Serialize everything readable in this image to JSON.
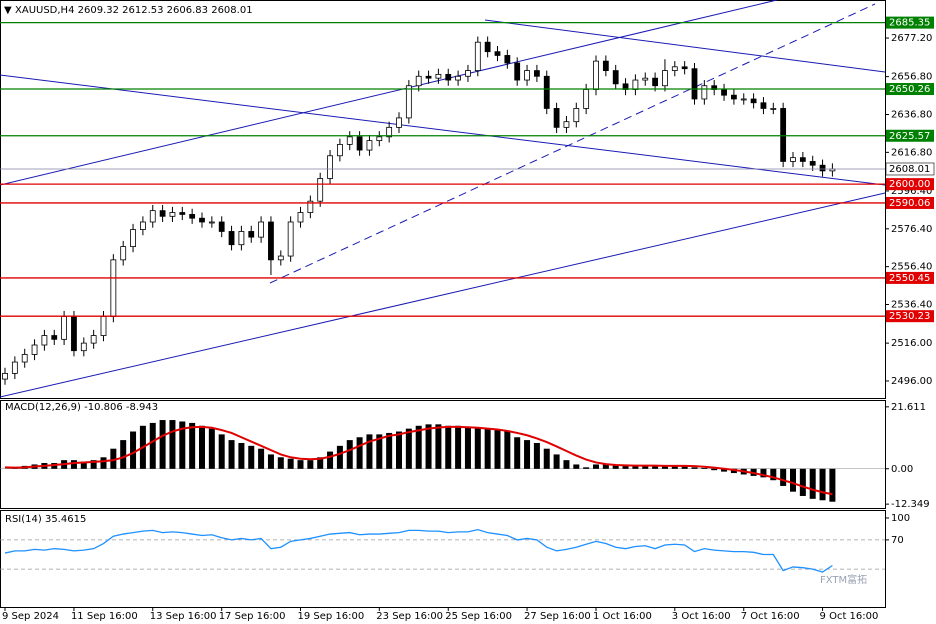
{
  "chart_data": [
    {
      "type": "candlestick",
      "title": "XAUUSD,H4 2609.32 2612.53 2606.83 2608.01",
      "categories": [
        "9 Sep 2024",
        null,
        null,
        null,
        null,
        null,
        null,
        "11 Sep 16:00",
        null,
        null,
        null,
        null,
        null,
        null,
        null,
        "13 Sep 16:00",
        null,
        null,
        null,
        null,
        null,
        null,
        "17 Sep 16:00",
        null,
        null,
        null,
        null,
        null,
        null,
        null,
        "19 Sep 16:00",
        null,
        null,
        null,
        null,
        null,
        null,
        null,
        "23 Sep 16:00",
        null,
        null,
        null,
        null,
        null,
        null,
        "25 Sep 16:00",
        null,
        null,
        null,
        null,
        null,
        null,
        null,
        "27 Sep 16:00",
        null,
        null,
        null,
        null,
        null,
        null,
        "1 Oct 16:00",
        null,
        null,
        null,
        null,
        null,
        null,
        null,
        "3 Oct 16:00",
        null,
        null,
        null,
        null,
        null,
        null,
        "7 Oct 16:00",
        null,
        null,
        null,
        null,
        null,
        null,
        null,
        "9 Oct 16:00",
        null
      ],
      "open": [
        2497,
        2500,
        2506,
        2510,
        2515,
        2520,
        2518,
        2530,
        2512,
        2516,
        2520,
        2530,
        2560,
        2567,
        2576,
        2580,
        2586,
        2583,
        2585,
        2584,
        2582,
        2580,
        2580,
        2575,
        2568,
        2575,
        2572,
        2580,
        2560,
        2562,
        2580,
        2585,
        2591,
        2603,
        2615,
        2621,
        2625,
        2618,
        2623,
        2625,
        2630,
        2635,
        2652,
        2657,
        2656,
        2658,
        2655,
        2657,
        2660,
        2675,
        2670,
        2668,
        2664,
        2655,
        2660,
        2657,
        2640,
        2630,
        2633,
        2640,
        2650,
        2665,
        2660,
        2653,
        2650,
        2655,
        2656,
        2652,
        2660,
        2662,
        2661,
        2645,
        2652,
        2650,
        2647,
        2645,
        2645,
        2643,
        2640,
        2640,
        2612,
        2614,
        2612,
        2610,
        2607
      ],
      "high": [
        2503,
        2509,
        2513,
        2518,
        2523,
        2523,
        2533,
        2533,
        2519,
        2523,
        2533,
        2563,
        2570,
        2579,
        2583,
        2589,
        2589,
        2588,
        2588,
        2587,
        2585,
        2583,
        2583,
        2578,
        2578,
        2578,
        2583,
        2583,
        2565,
        2583,
        2588,
        2594,
        2606,
        2618,
        2624,
        2628,
        2628,
        2626,
        2628,
        2633,
        2638,
        2655,
        2660,
        2660,
        2661,
        2661,
        2660,
        2663,
        2678,
        2678,
        2673,
        2671,
        2667,
        2663,
        2663,
        2660,
        2643,
        2636,
        2643,
        2653,
        2668,
        2668,
        2663,
        2656,
        2658,
        2659,
        2659,
        2666,
        2665,
        2665,
        2664,
        2655,
        2655,
        2653,
        2650,
        2648,
        2648,
        2646,
        2643,
        2643,
        2617,
        2617,
        2615,
        2613,
        2611
      ],
      "low": [
        2494,
        2497,
        2503,
        2507,
        2512,
        2515,
        2515,
        2509,
        2509,
        2513,
        2517,
        2527,
        2557,
        2564,
        2573,
        2577,
        2580,
        2580,
        2581,
        2579,
        2577,
        2577,
        2572,
        2565,
        2565,
        2569,
        2569,
        2552,
        2557,
        2559,
        2577,
        2582,
        2588,
        2600,
        2612,
        2618,
        2615,
        2615,
        2620,
        2622,
        2627,
        2632,
        2649,
        2653,
        2653,
        2652,
        2652,
        2654,
        2657,
        2667,
        2665,
        2661,
        2652,
        2652,
        2654,
        2637,
        2627,
        2627,
        2630,
        2637,
        2647,
        2657,
        2650,
        2647,
        2647,
        2652,
        2649,
        2649,
        2657,
        2658,
        2642,
        2642,
        2647,
        2644,
        2642,
        2642,
        2640,
        2637,
        2637,
        2609,
        2609,
        2609,
        2607,
        2604,
        2604
      ],
      "close": [
        2500,
        2506,
        2510,
        2515,
        2520,
        2518,
        2530,
        2512,
        2516,
        2520,
        2530,
        2560,
        2567,
        2576,
        2580,
        2586,
        2583,
        2585,
        2584,
        2582,
        2580,
        2580,
        2575,
        2568,
        2575,
        2572,
        2580,
        2560,
        2562,
        2580,
        2585,
        2591,
        2603,
        2615,
        2621,
        2625,
        2618,
        2623,
        2625,
        2630,
        2635,
        2652,
        2657,
        2656,
        2658,
        2655,
        2657,
        2660,
        2675,
        2670,
        2668,
        2664,
        2655,
        2660,
        2657,
        2640,
        2630,
        2633,
        2640,
        2650,
        2665,
        2660,
        2653,
        2650,
        2655,
        2656,
        2652,
        2660,
        2662,
        2661,
        2645,
        2652,
        2650,
        2647,
        2645,
        2645,
        2643,
        2640,
        2640,
        2612,
        2614,
        2612,
        2610,
        2607,
        2608
      ],
      "up_color": "#ffffff",
      "down_color": "#000000",
      "ylim": [
        2487.0,
        2697.3
      ],
      "yticks": [
        {
          "value": 2677.2,
          "label": "2677.20"
        },
        {
          "value": 2656.8,
          "label": "2656.80"
        },
        {
          "value": 2636.8,
          "label": "2636.80"
        },
        {
          "value": 2616.8,
          "label": "2616.80"
        },
        {
          "value": 2596.4,
          "label": "2596.40"
        },
        {
          "value": 2576.4,
          "label": "2576.40"
        },
        {
          "value": 2556.4,
          "label": "2556.40"
        },
        {
          "value": 2536.4,
          "label": "2536.40"
        },
        {
          "value": 2516,
          "label": "2516.00"
        },
        {
          "value": 2496,
          "label": "2496.00"
        }
      ],
      "last_price": 2608.01,
      "levels": [
        {
          "value": 2685.35,
          "color": "#008000"
        },
        {
          "value": 2650.26,
          "color": "#008000"
        },
        {
          "value": 2625.57,
          "color": "#008000"
        },
        {
          "value": 2600,
          "label": "2600.00",
          "color": "#e00000"
        },
        {
          "value": 2590.06,
          "color": "#e00000"
        },
        {
          "value": 2550.45,
          "color": "#e00000"
        },
        {
          "value": 2530.23,
          "color": "#e00000"
        }
      ]
    },
    {
      "type": "macd",
      "title": "MACD(12,26,9) -10.806 -8.943",
      "series": [
        {
          "color": "#000000",
          "values": [
            0,
            0.5,
            1,
            1.5,
            2,
            2,
            3,
            3,
            2.5,
            3,
            4,
            7,
            10,
            13,
            15,
            16,
            17,
            17,
            16.5,
            16,
            15,
            14,
            12,
            10,
            9,
            8,
            7,
            5,
            4,
            3.5,
            3,
            3,
            4,
            6,
            8,
            10,
            11,
            12,
            12,
            12.5,
            13,
            14,
            15,
            15.5,
            15.5,
            15,
            15,
            14.5,
            14.5,
            14,
            13.5,
            13,
            11,
            10,
            9,
            7,
            5,
            3,
            1.5,
            0.5,
            1.5,
            1.5,
            1.2,
            1,
            1,
            1,
            1.2,
            0.8,
            1,
            1,
            0.5,
            0.3,
            -0.5,
            -1,
            -1.5,
            -2,
            -2.5,
            -3,
            -4,
            -6,
            -8,
            -9.5,
            -10.5,
            -11,
            -11.5
          ]
        },
        {
          "color": "#e00000",
          "values": [
            0.5,
            0.4,
            0.5,
            0.8,
            1,
            1.3,
            1.6,
            2,
            2.2,
            2.4,
            2.6,
            3,
            4,
            5.5,
            7.5,
            9.5,
            11.5,
            13,
            14,
            14.5,
            14.6,
            14.3,
            13.5,
            12.5,
            11,
            9.5,
            8,
            6.5,
            5,
            4,
            3.5,
            3.3,
            3.5,
            4.2,
            5.2,
            6.5,
            8,
            9.5,
            10.5,
            11.5,
            12,
            12.8,
            13.4,
            14,
            14.4,
            14.6,
            14.6,
            14.5,
            14.3,
            14,
            13.7,
            13.2,
            12.5,
            11.7,
            10.6,
            9.3,
            7.8,
            6.2,
            4.6,
            3.2,
            2.2,
            1.6,
            1.3,
            1.2,
            1.1,
            1.1,
            1.1,
            1,
            1,
            1,
            0.9,
            0.7,
            0.4,
            0,
            -0.4,
            -0.9,
            -1.5,
            -2.2,
            -3,
            -4,
            -5,
            -6.2,
            -7.3,
            -8.2,
            -8.9
          ]
        }
      ],
      "ylim": [
        -13.7,
        24.0
      ],
      "yticks": [
        21.611,
        {
          "value": 0,
          "label": "0.00"
        },
        -12.349
      ]
    },
    {
      "type": "line",
      "title": "RSI(14) 35.4615",
      "color": "#1e90ff",
      "values": [
        52,
        55,
        55,
        57,
        56,
        58,
        57,
        55,
        56,
        58,
        65,
        75,
        78,
        80,
        82,
        83,
        80,
        81,
        80,
        78,
        76,
        77,
        73,
        70,
        72,
        70,
        72,
        58,
        60,
        68,
        70,
        72,
        75,
        78,
        79,
        80,
        77,
        78,
        78,
        79,
        80,
        83,
        83,
        82,
        82,
        80,
        81,
        81,
        84,
        80,
        78,
        76,
        70,
        72,
        70,
        60,
        55,
        57,
        60,
        64,
        68,
        65,
        60,
        58,
        61,
        62,
        58,
        63,
        64,
        63,
        54,
        58,
        56,
        55,
        54,
        54,
        53,
        50,
        50,
        28,
        33,
        32,
        30,
        26,
        35
      ],
      "ylim": [
        -21.8,
        110.9
      ],
      "yticks": [
        100,
        70
      ],
      "levels": [
        70,
        30
      ]
    }
  ],
  "watermark": "FXTM富拓"
}
